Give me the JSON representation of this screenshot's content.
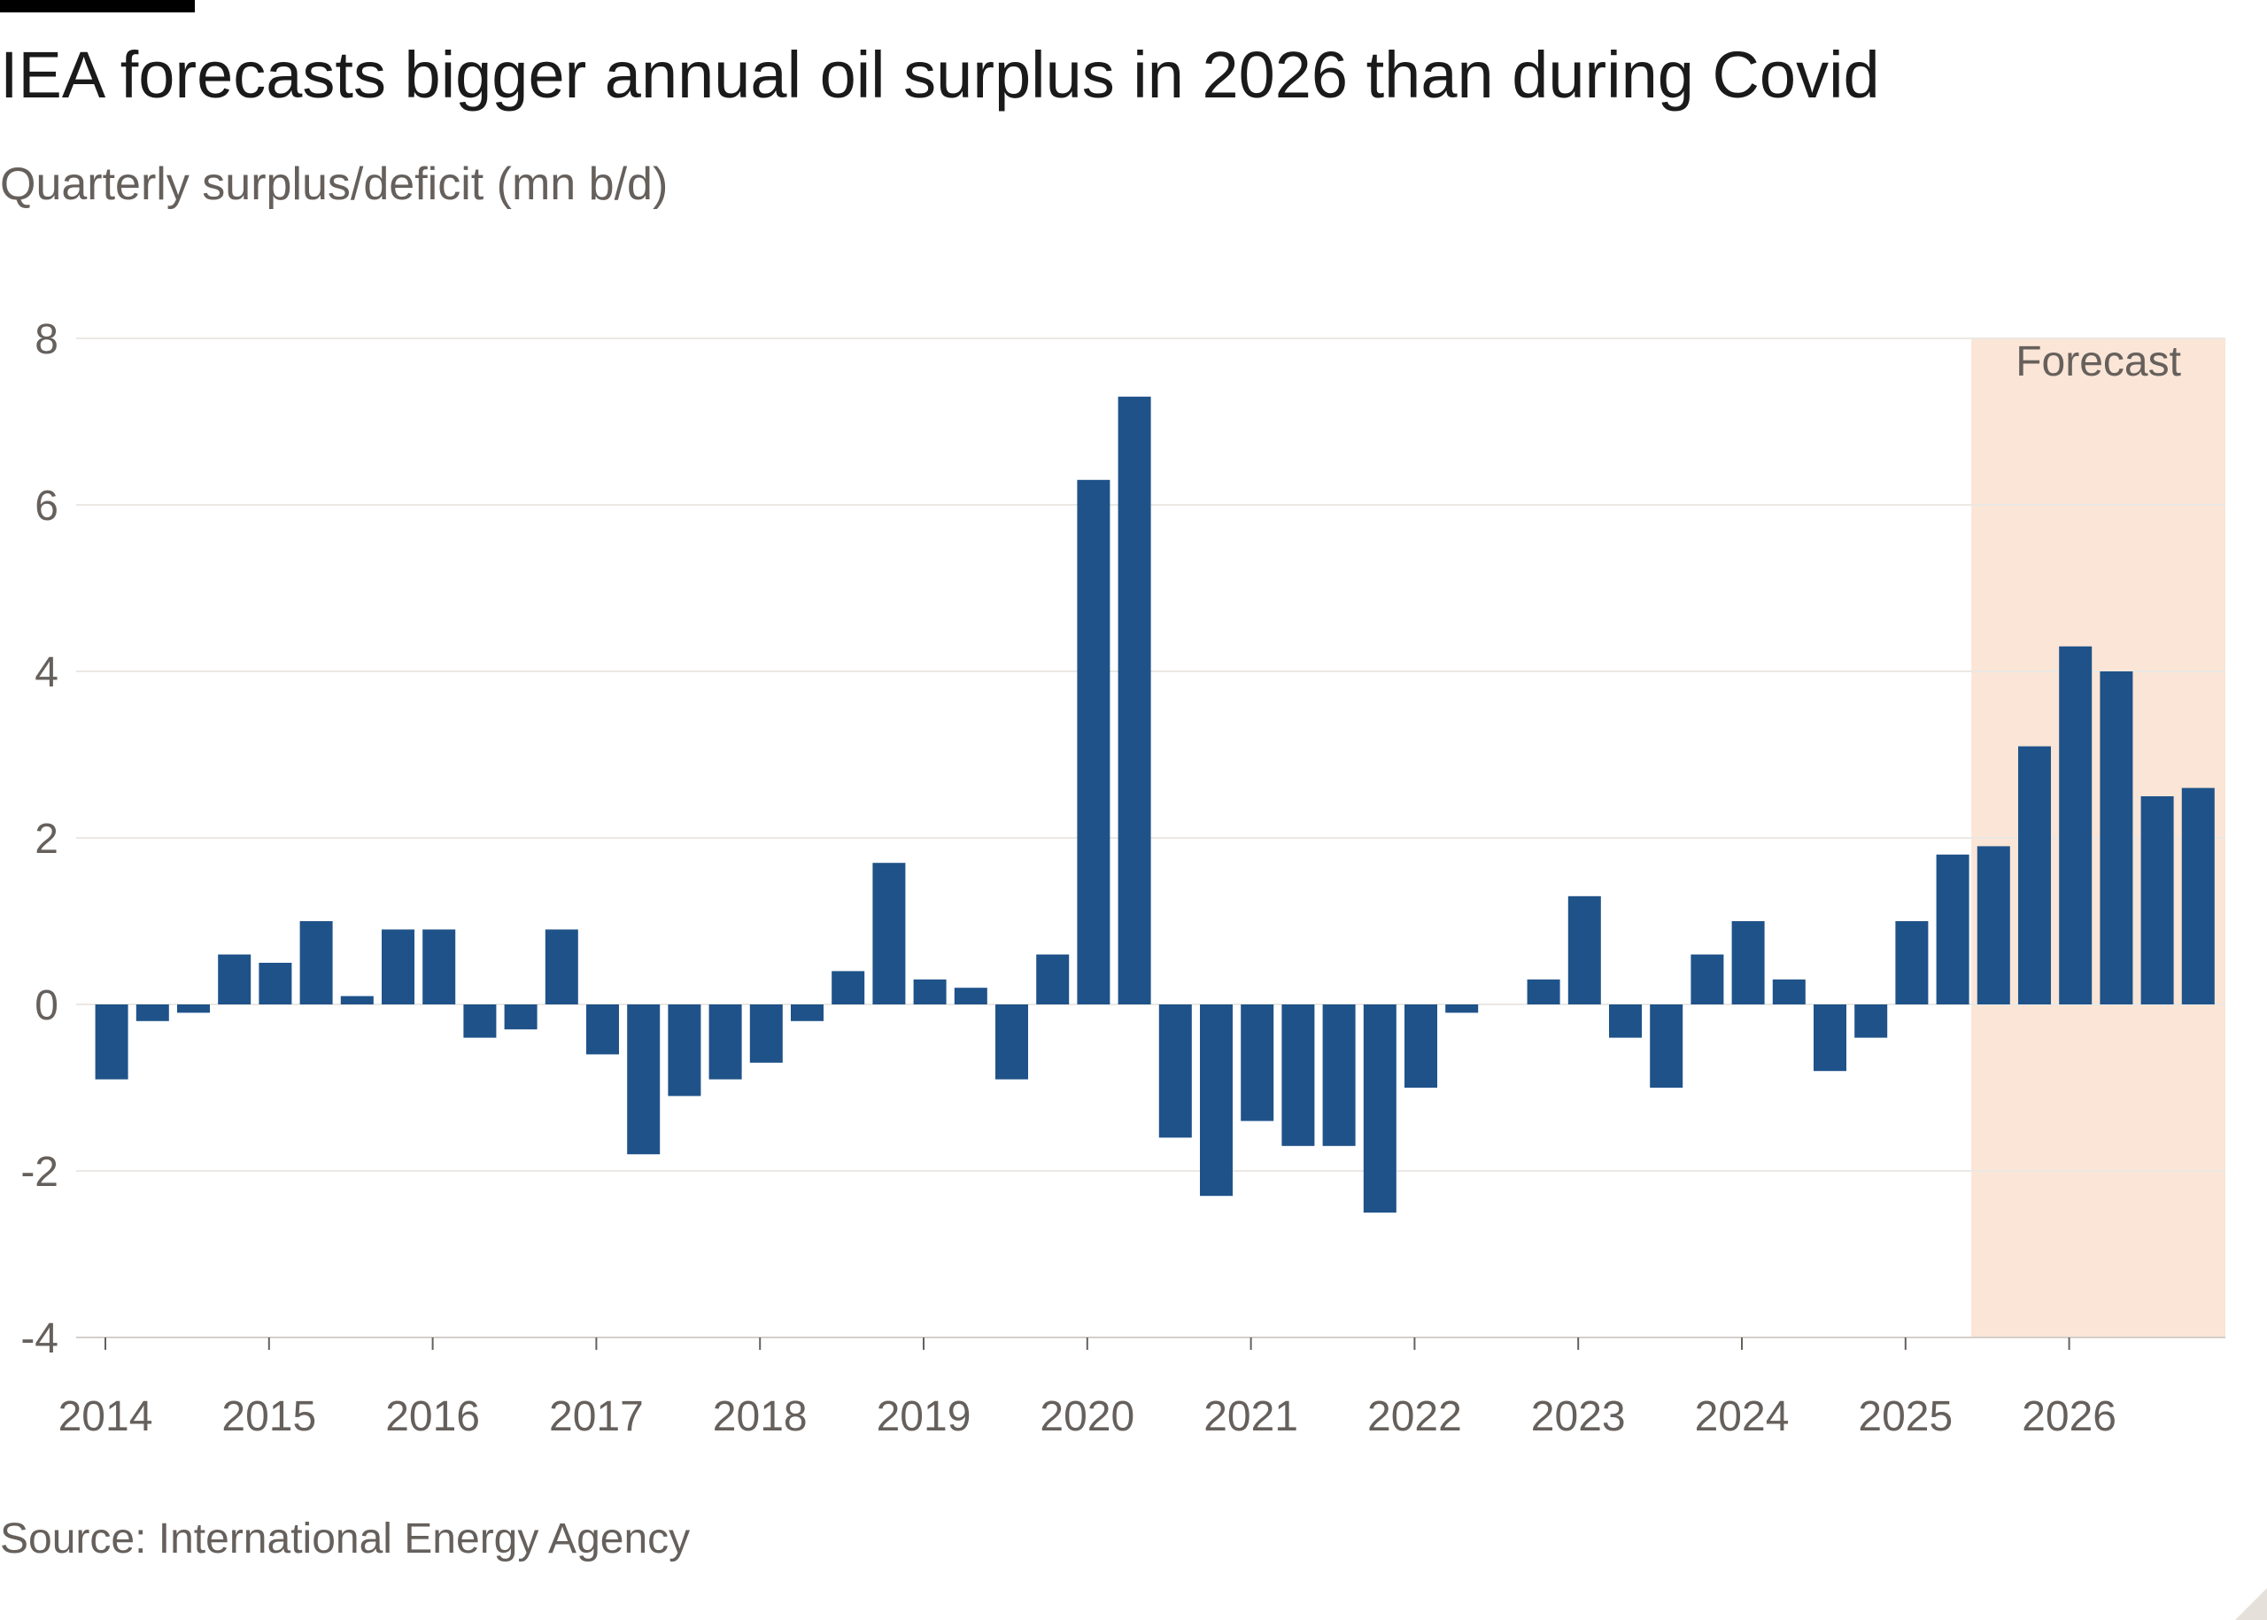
{
  "title": "IEA forecasts bigger annual oil surplus in 2026 than during Covid",
  "subtitle": "Quarterly surplus/deficit (mn b/d)",
  "source": "Source: International Energy Agency",
  "colors": {
    "bar": "#1f5289",
    "forecast_shade": "#fae5d6",
    "grid": "#ebe8e4",
    "axis_text": "#66605c"
  },
  "chart_data": {
    "type": "bar",
    "title": "IEA forecasts bigger annual oil surplus in 2026 than during Covid",
    "ylabel": "Quarterly surplus/deficit (mn b/d)",
    "xlabel": "",
    "ylim": [
      -4,
      8
    ],
    "yticks": [
      -4,
      -2,
      0,
      2,
      4,
      6,
      8
    ],
    "grid": true,
    "xticks": [
      "2014",
      "2015",
      "2016",
      "2017",
      "2018",
      "2019",
      "2020",
      "2021",
      "2022",
      "2023",
      "2024",
      "2025",
      "2026"
    ],
    "forecast_label": "Forecast",
    "forecast_start": "2025 Q3",
    "categories": [
      "2014 Q1",
      "2014 Q2",
      "2014 Q3",
      "2014 Q4",
      "2015 Q1",
      "2015 Q2",
      "2015 Q3",
      "2015 Q4",
      "2016 Q1",
      "2016 Q2",
      "2016 Q3",
      "2016 Q4",
      "2017 Q1",
      "2017 Q2",
      "2017 Q3",
      "2017 Q4",
      "2018 Q1",
      "2018 Q2",
      "2018 Q3",
      "2018 Q4",
      "2019 Q1",
      "2019 Q2",
      "2019 Q3",
      "2019 Q4",
      "2020 Q1",
      "2020 Q2",
      "2020 Q3",
      "2020 Q4",
      "2021 Q1",
      "2021 Q2",
      "2021 Q3",
      "2021 Q4",
      "2022 Q1",
      "2022 Q2",
      "2022 Q3",
      "2022 Q4",
      "2023 Q1",
      "2023 Q2",
      "2023 Q3",
      "2023 Q4",
      "2024 Q1",
      "2024 Q2",
      "2024 Q3",
      "2024 Q4",
      "2025 Q1",
      "2025 Q2",
      "2025 Q3",
      "2025 Q4",
      "2026 Q1",
      "2026 Q2",
      "2026 Q3",
      "2026 Q4"
    ],
    "values": [
      -0.9,
      -0.2,
      -0.1,
      0.6,
      0.5,
      1.0,
      0.1,
      0.9,
      0.9,
      -0.4,
      -0.3,
      0.9,
      -0.6,
      -1.8,
      -1.1,
      -0.9,
      -0.7,
      -0.2,
      0.4,
      1.7,
      0.3,
      0.2,
      -0.9,
      0.6,
      6.3,
      7.3,
      -1.6,
      -2.3,
      -1.4,
      -1.7,
      -1.7,
      -2.5,
      -1.0,
      -0.1,
      0.0,
      0.3,
      1.3,
      -0.4,
      -1.0,
      0.6,
      1.0,
      0.3,
      -0.8,
      -0.4,
      1.0,
      1.8,
      1.9,
      3.1,
      4.3,
      4.0,
      2.5,
      2.6
    ]
  }
}
